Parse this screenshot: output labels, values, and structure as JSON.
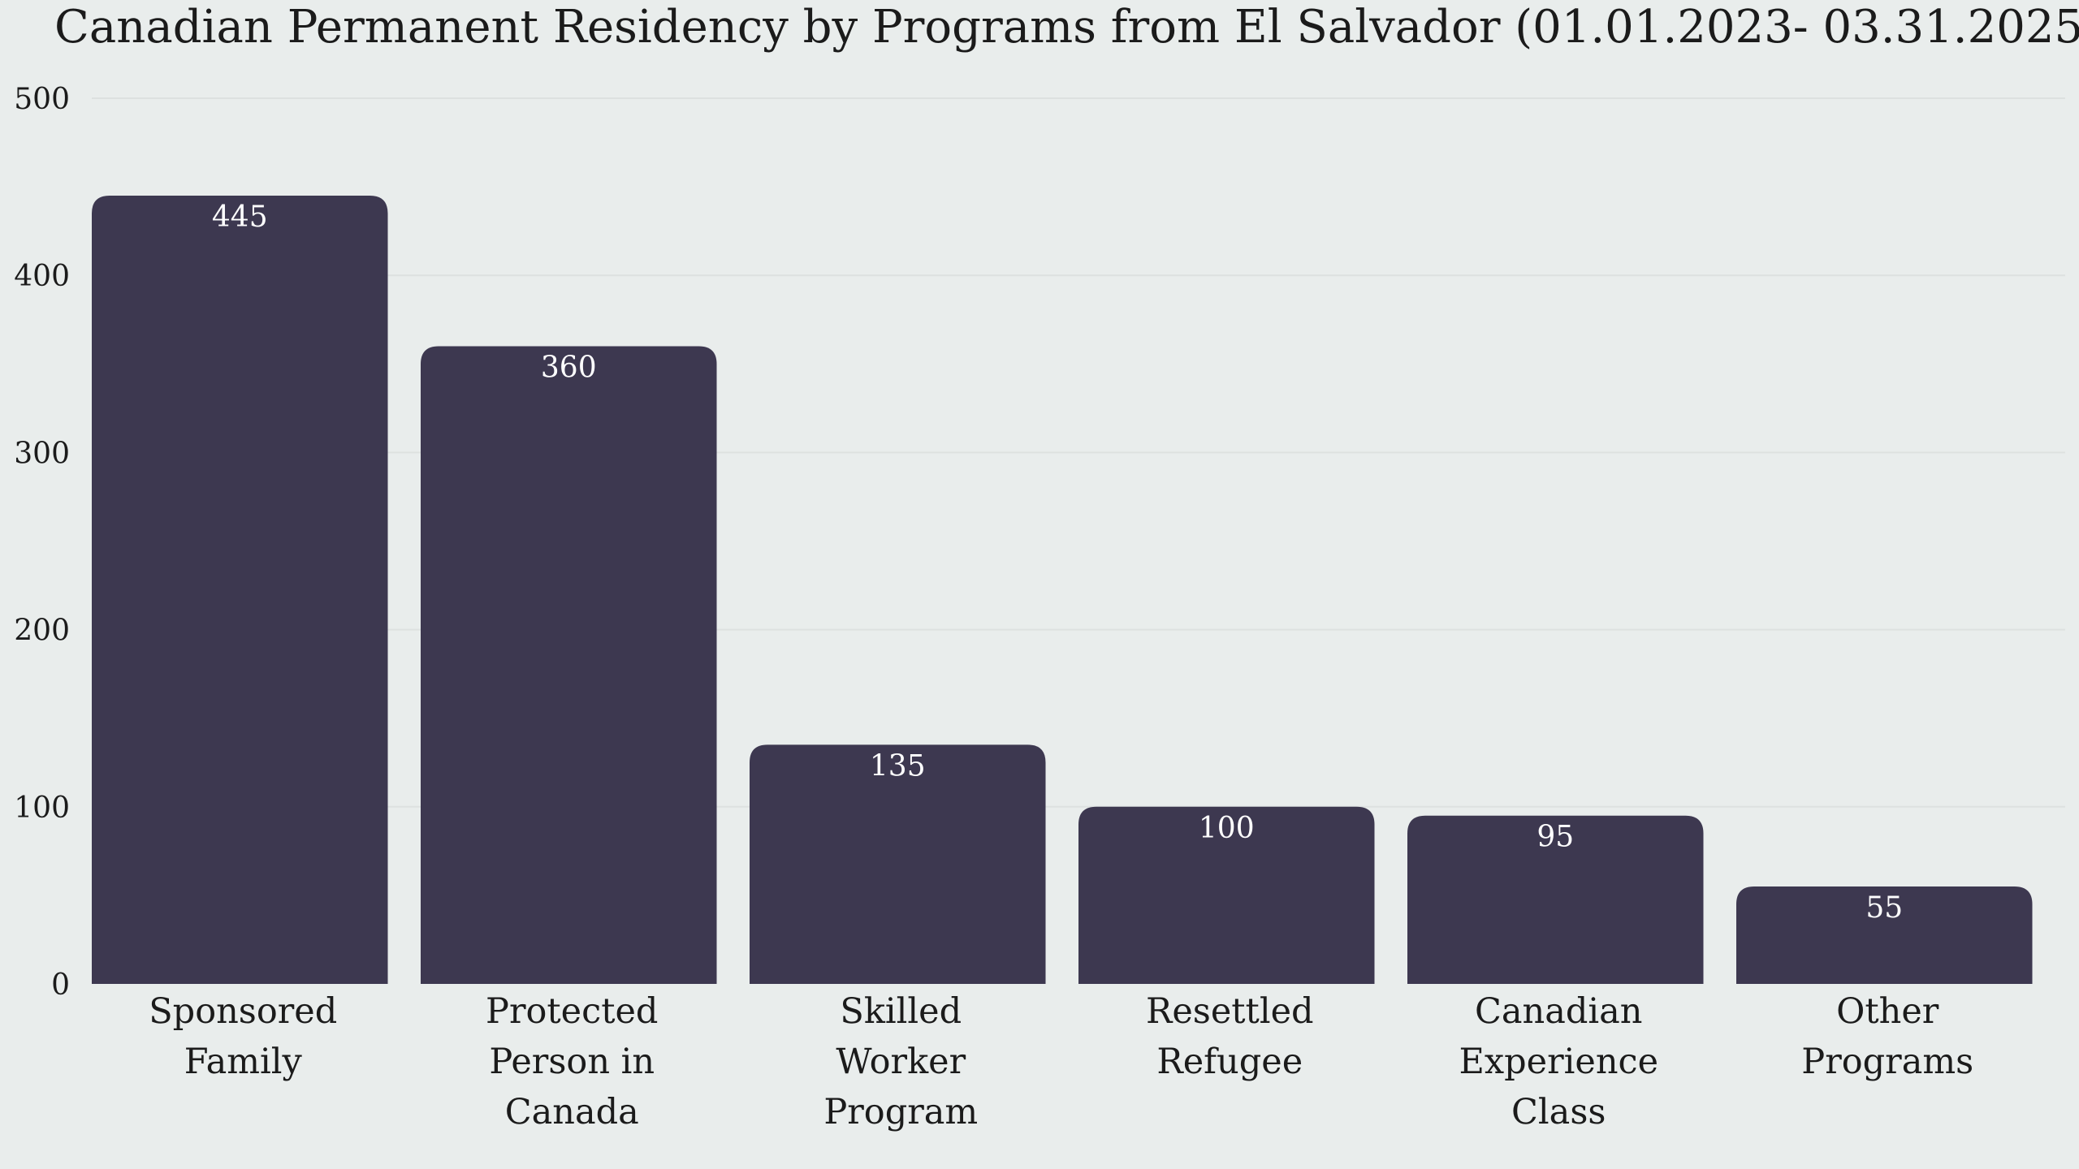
{
  "chart_data": {
    "type": "bar",
    "title": "Canadian Permanent Residency by Programs from El Salvador (01.01.2023- 03.31.2025)",
    "xlabel": "",
    "ylabel": "",
    "ylim": [
      0,
      500
    ],
    "yticks": [
      0,
      100,
      200,
      300,
      400,
      500
    ],
    "grid": true,
    "categories": [
      [
        "Sponsored",
        "Family"
      ],
      [
        "Protected",
        "Person in",
        "Canada"
      ],
      [
        "Skilled",
        "Worker",
        "Program"
      ],
      [
        "Resettled",
        "Refugee"
      ],
      [
        "Canadian",
        "Experience",
        "Class"
      ],
      [
        "Other",
        "Programs"
      ]
    ],
    "values": [
      445,
      360,
      135,
      100,
      95,
      55
    ],
    "data_labels": [
      "445",
      "360",
      "135",
      "100",
      "95",
      "55"
    ],
    "colors": {
      "bar": "#3d3850",
      "background": "#e9edec",
      "grid": "#dde1e0",
      "text": "#1b1b1b",
      "data_label": "#ffffff"
    }
  }
}
